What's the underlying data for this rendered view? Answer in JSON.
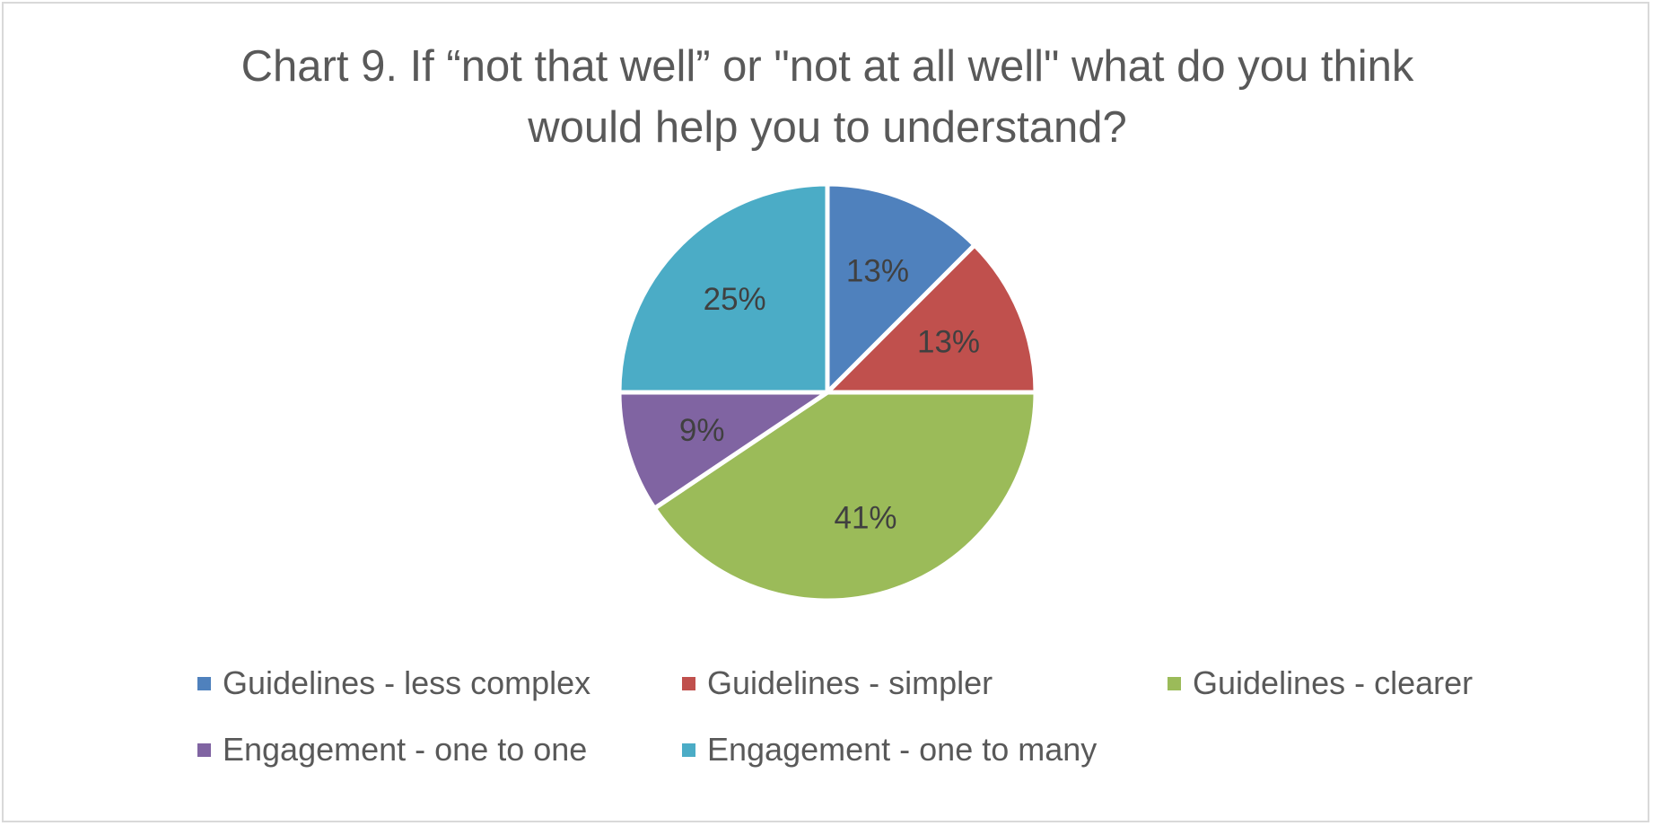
{
  "chart_data": {
    "type": "pie",
    "title_lines": [
      "Chart 9. If “not that well” or \"not at all well\" what do you think",
      "would help you to understand?"
    ],
    "slices": [
      {
        "label": "Guidelines - less complex",
        "value": 12.5,
        "display": "13%",
        "color": "#4F81BD"
      },
      {
        "label": "Guidelines - simpler",
        "value": 12.5,
        "display": "13%",
        "color": "#C0504D"
      },
      {
        "label": "Guidelines - clearer",
        "value": 40.6,
        "display": "41%",
        "color": "#9BBB59"
      },
      {
        "label": "Engagement - one to one",
        "value": 9.4,
        "display": "9%",
        "color": "#8064A2"
      },
      {
        "label": "Engagement - one to many",
        "value": 25.0,
        "display": "25%",
        "color": "#4BACC6"
      }
    ],
    "legend_position": "bottom"
  }
}
